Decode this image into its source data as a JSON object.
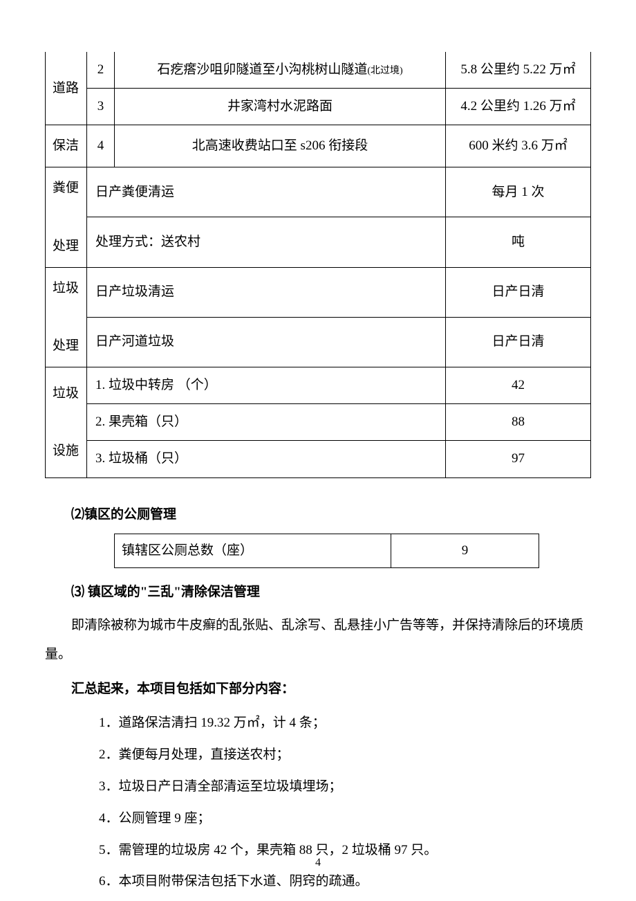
{
  "main_table": {
    "categories": {
      "road": "道路",
      "clean": "保洁",
      "feces": "粪便",
      "dispose1": "处理",
      "trash": "垃圾",
      "dispose2": "处理",
      "facility": "垃圾",
      "facility2": "设施"
    },
    "road_rows": [
      {
        "num": "2",
        "desc_prefix": "石疙瘩沙咀卯隧道至小沟桃树山隧道",
        "desc_suffix": "(北过境)",
        "val": "5.8 公里约 5.22 万㎡"
      },
      {
        "num": "3",
        "desc": "井家湾村水泥路面",
        "val": "4.2 公里约 1.26 万㎡"
      },
      {
        "num": "4",
        "desc": "北高速收费站口至 s206 衔接段",
        "val": "600 米约 3.6 万㎡"
      }
    ],
    "feces_rows": [
      {
        "desc": "日产粪便清运",
        "val": "每月 1 次"
      },
      {
        "desc": "处理方式：送农村",
        "val": "吨"
      }
    ],
    "trash_rows": [
      {
        "desc": "日产垃圾清运",
        "val": "日产日清"
      },
      {
        "desc": "日产河道垃圾",
        "val": "日产日清"
      }
    ],
    "facility_rows": [
      {
        "desc": "1. 垃圾中转房 （个）",
        "val": "42"
      },
      {
        "desc": "2. 果壳箱（只）",
        "val": "88"
      },
      {
        "desc": "3. 垃圾桶（只）",
        "val": "97"
      }
    ]
  },
  "section2": {
    "heading": "⑵镇区的公厕管理",
    "label": "镇辖区公厕总数（座）",
    "value": "9"
  },
  "section3": {
    "heading": "⑶ 镇区域的\"三乱\"清除保洁管理",
    "para": "即清除被称为城市牛皮癣的乱张贴、乱涂写、乱悬挂小广告等等，并保持清除后的环境质量。"
  },
  "summary": {
    "heading": "汇总起来，本项目包括如下部分内容：",
    "items": [
      "1．道路保洁清扫 19.32 万㎡，计 4 条；",
      "2．粪便每月处理，直接送农村；",
      "3．垃圾日产日清全部清运至垃圾填埋场；",
      "4．公厕管理 9 座；",
      "5．需管理的垃圾房 42 个，果壳箱 88 只，2 垃圾桶 97 只。",
      "6．本项目附带保洁包括下水道、阴窍的疏通。"
    ]
  },
  "page_number": "4"
}
